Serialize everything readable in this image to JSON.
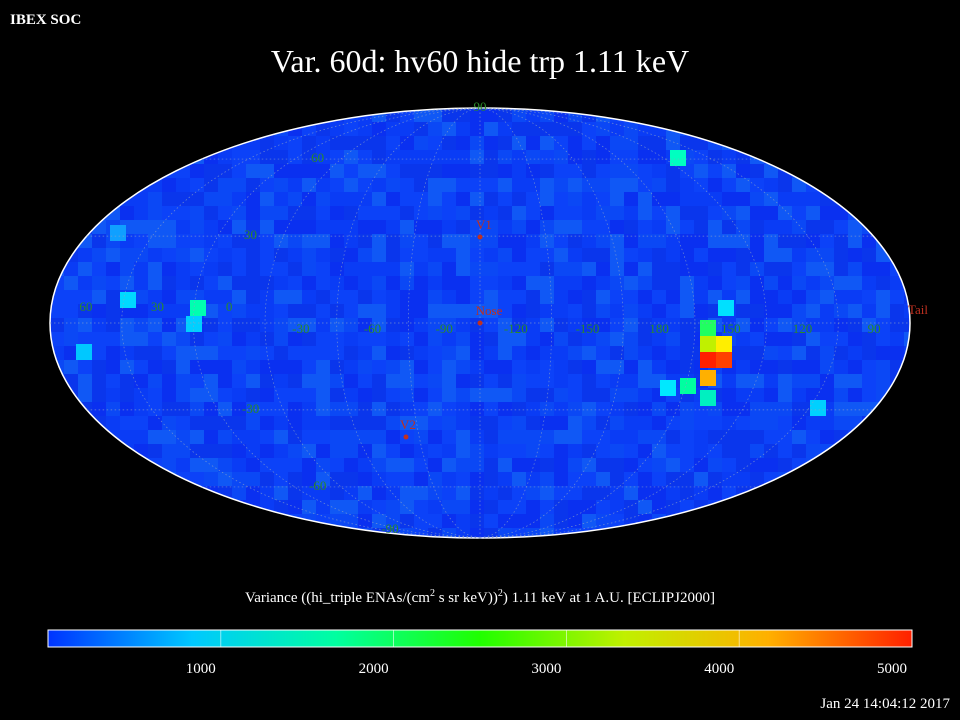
{
  "header": {
    "label": "IBEX SOC",
    "title": "Var. 60d: hv60 hide trp 1.11 keV"
  },
  "map": {
    "longitude_labels": [
      60,
      30,
      0,
      -30,
      -60,
      -90,
      -120,
      -150,
      180,
      150,
      120,
      90
    ],
    "latitude_labels": [
      90,
      60,
      30,
      -30,
      -60,
      -90
    ],
    "markers": {
      "v1": "V1",
      "nose": "Nose",
      "v2": "V2",
      "tail": "Tail"
    }
  },
  "colorbar": {
    "title_parts": [
      "Variance ((hi_triple ENAs/(cm",
      "2",
      " s sr keV))",
      "2",
      ") 1.11 keV at 1 A.U. [ECLIPJ2000]"
    ],
    "lim": [
      0,
      5000
    ],
    "ticks": [
      1000,
      2000,
      3000,
      4000,
      5000
    ],
    "colors": [
      "#0033ff",
      "#00c8ff",
      "#00ffa0",
      "#20ff00",
      "#c0f000",
      "#ffb000",
      "#ff2000"
    ]
  },
  "footer": {
    "timestamp": "Jan 24 14:04:12 2017"
  }
}
